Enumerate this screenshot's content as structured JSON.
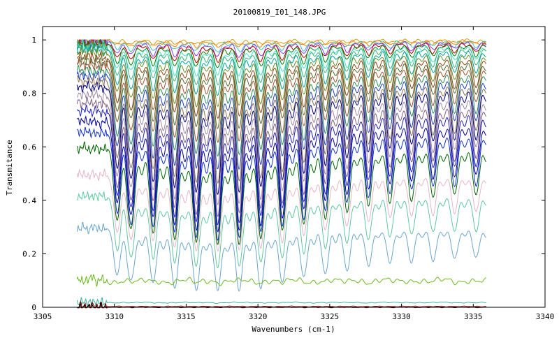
{
  "chart_data": {
    "type": "line",
    "title": "20100819_I01_148.JPG",
    "xlabel": "Wavenumbers (cm-1)",
    "ylabel": "Transmitance",
    "xlim": [
      3305,
      3340
    ],
    "ylim": [
      0,
      1.05
    ],
    "x_ticks": [
      3305,
      3310,
      3315,
      3320,
      3325,
      3330,
      3335,
      3340
    ],
    "y_ticks": [
      0,
      0.2,
      0.4,
      0.6,
      0.8,
      1
    ],
    "x_tick_labels": [
      "3305",
      "3310",
      "3315",
      "3320",
      "3325",
      "3330",
      "3335",
      "3340"
    ],
    "y_tick_labels": [
      "0",
      "0.2",
      "0.4",
      "0.6",
      "0.8",
      "1"
    ],
    "x_data_range": [
      3307.4,
      3335.9
    ],
    "grid": false,
    "legend": "none",
    "absorption_lines_cm1": [
      3310.2,
      3311.2,
      3312.7,
      3314.2,
      3315.7,
      3317.2,
      3318.7,
      3320.2,
      3321.7,
      3323.2,
      3324.7,
      3326.2,
      3327.7,
      3329.2,
      3330.7,
      3332.2,
      3333.7,
      3335.2
    ],
    "series": [
      {
        "baseline": 0.998,
        "min_at_3317": 0.985,
        "color": "#d0a000"
      },
      {
        "baseline": 0.996,
        "min_at_3317": 0.975,
        "color": "#ff7f00"
      },
      {
        "baseline": 0.994,
        "min_at_3317": 0.96,
        "color": "#40c0c0"
      },
      {
        "baseline": 0.992,
        "min_at_3317": 0.94,
        "color": "#8040ff"
      },
      {
        "baseline": 0.99,
        "min_at_3317": 0.92,
        "color": "#c00000"
      },
      {
        "baseline": 0.985,
        "min_at_3317": 0.9,
        "color": "#008000"
      },
      {
        "baseline": 0.98,
        "min_at_3317": 0.87,
        "color": "#40e0d0"
      },
      {
        "baseline": 0.975,
        "min_at_3317": 0.84,
        "color": "#3cb371"
      },
      {
        "baseline": 0.965,
        "min_at_3317": 0.8,
        "color": "#00a0a0"
      },
      {
        "baseline": 0.955,
        "min_at_3317": 0.76,
        "color": "#6b8e23"
      },
      {
        "baseline": 0.94,
        "min_at_3317": 0.72,
        "color": "#8b4513"
      },
      {
        "baseline": 0.925,
        "min_at_3317": 0.68,
        "color": "#556b2f"
      },
      {
        "baseline": 0.91,
        "min_at_3317": 0.63,
        "color": "#a0522d"
      },
      {
        "baseline": 0.89,
        "min_at_3317": 0.58,
        "color": "#2e8b57"
      },
      {
        "baseline": 0.87,
        "min_at_3317": 0.53,
        "color": "#1f3fbf"
      },
      {
        "baseline": 0.85,
        "min_at_3317": 0.48,
        "color": "#8b7355"
      },
      {
        "baseline": 0.83,
        "min_at_3317": 0.44,
        "color": "#000080"
      },
      {
        "baseline": 0.8,
        "min_at_3317": 0.4,
        "color": "#9c8aa5"
      },
      {
        "baseline": 0.77,
        "min_at_3317": 0.36,
        "color": "#806080"
      },
      {
        "baseline": 0.74,
        "min_at_3317": 0.33,
        "color": "#2020c0"
      },
      {
        "baseline": 0.7,
        "min_at_3317": 0.3,
        "color": "#0000a0"
      },
      {
        "baseline": 0.66,
        "min_at_3317": 0.27,
        "color": "#1030d0"
      },
      {
        "baseline": 0.6,
        "min_at_3317": 0.25,
        "color": "#006400"
      },
      {
        "baseline": 0.5,
        "min_at_3317": 0.22,
        "color": "#e8b4c8"
      },
      {
        "baseline": 0.42,
        "min_at_3317": 0.16,
        "color": "#5fc8a0"
      },
      {
        "baseline": 0.3,
        "min_at_3317": 0.07,
        "color": "#6ca6cd"
      },
      {
        "baseline": 0.1,
        "min_at_3317": 0.06,
        "color": "#6aba1e"
      },
      {
        "baseline": 0.018,
        "min_at_3317": 0.01,
        "color": "#3cb3a0"
      },
      {
        "baseline": 0.003,
        "min_at_3317": 0.002,
        "color": "#8b0000"
      },
      {
        "baseline": 0.0,
        "min_at_3317": 0.0,
        "color": "#000000"
      }
    ]
  }
}
